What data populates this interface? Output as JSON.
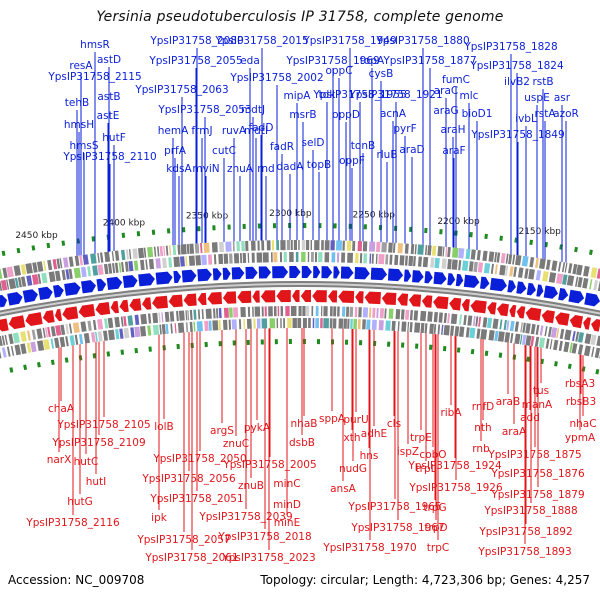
{
  "title": "Yersinia pseudotuberculosis IP 31758, complete genome",
  "footer": {
    "accession": "Accession: NC_009708",
    "summary": "Topology: circular; Length: 4,723,306 bp; Genes: 4,257"
  },
  "scale_labels": [
    "2450 kbp",
    "2400 kbp",
    "2350 kbp",
    "2300 kbp",
    "2250 kbp",
    "2200 kbp",
    "2150 kbp"
  ],
  "colors": {
    "forward_strand": "#0a1fd8",
    "reverse_strand": "#e0161b",
    "backbone": "#7f7f7f",
    "tick": "#1f8a1f"
  },
  "forward_genes": [
    "hmsR",
    "resA",
    "astD",
    "YpsIP31758_2115",
    "tehB",
    "astB",
    "hmsH",
    "astE",
    "hutF",
    "hmsS",
    "YpsIP31758_2110",
    "YpsIP31758_2080",
    "YpsIP31758_2055",
    "YpsIP31758_2063",
    "hemA",
    "prfA",
    "kdsA",
    "YpsIP31758_2053",
    "frmJ",
    "mviN",
    "eda",
    "YpsIP31758_2015",
    "YpsIP31758_2002",
    "mdtJ",
    "ruvA",
    "mdtI",
    "fadD",
    "cutC",
    "znuA",
    "rnd",
    "fadR",
    "dadA",
    "YpsIP31758_1949",
    "YpsIP31758_1969",
    "oppC",
    "mipA",
    "tdk",
    "msrB",
    "oppD",
    "selD",
    "topB",
    "topA",
    "cysB",
    "YpsIP31758_1921",
    "YpsIP31758_1955",
    "tonB",
    "oppF",
    "acnA",
    "rluB",
    "pyrF",
    "araD",
    "YpsIP31758_1880",
    "YpsIP31758_1877",
    "fumC",
    "araC",
    "mlc",
    "araG",
    "bioD1",
    "araH",
    "araF",
    "YpsIP31758_1828",
    "YpsIP31758_1824",
    "ilvB2",
    "rstB",
    "uspE",
    "asr",
    "ivbL",
    "rstA",
    "azoR",
    "YpsIP31758_1849"
  ],
  "reverse_genes": [
    "chaA",
    "YpsIP31758_2105",
    "YpsIP31758_2109",
    "narX",
    "hutC",
    "hutI",
    "hutG",
    "YpsIP31758_2116",
    "lolB",
    "argS",
    "YpsIP31758_2050",
    "YpsIP31758_2056",
    "ipk",
    "YpsIP31758_2051",
    "znuC",
    "pykA",
    "znuB",
    "YpsIP31758_2039",
    "minC",
    "minD",
    "minE",
    "YpsIP31758_2018",
    "YpsIP31758_2057",
    "YpsIP31758_2061",
    "YpsIP31758_2023",
    "nhaB",
    "dsbB",
    "YpsIP31758_2005",
    "sppA",
    "purU",
    "xth",
    "adhE",
    "nudG",
    "hns",
    "ansA",
    "YpsIP31758_1965",
    "YpsIP31758_1967",
    "YpsIP31758_1970",
    "cls",
    "trpE",
    "ispZ",
    "cobO",
    "trpL",
    "YpsIP31758_1924",
    "YpsIP31758_1926",
    "trpG",
    "trpD",
    "trpC",
    "ribA",
    "rnfD",
    "rnb",
    "nth",
    "araB",
    "araA",
    "tus",
    "manA",
    "add",
    "rbsA3",
    "rbsB3",
    "nhaC",
    "ypmA",
    "YpsIP31758_1875",
    "YpsIP31758_1876",
    "YpsIP31758_1879",
    "YpsIP31758_1888",
    "YpsIP31758_1892",
    "YpsIP31758_1893"
  ]
}
